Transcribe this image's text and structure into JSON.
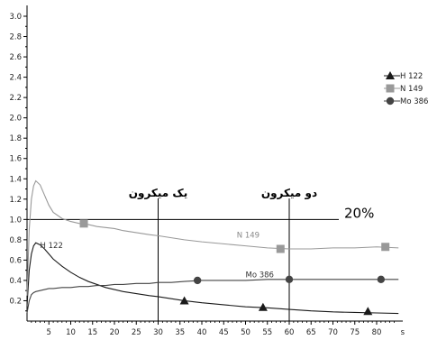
{
  "chart_data": {
    "type": "line",
    "xlim": [
      0,
      88
    ],
    "ylim": [
      0,
      3.2
    ],
    "x_ticks": [
      5,
      10,
      15,
      20,
      25,
      30,
      35,
      40,
      45,
      50,
      55,
      60,
      65,
      70,
      75,
      80
    ],
    "x_unit": "s",
    "y_ticks": [
      0.2,
      0.4,
      0.6,
      0.8,
      1.0,
      1.2,
      1.4,
      1.6,
      1.8,
      2.0,
      2.2,
      2.4,
      2.6,
      2.8,
      3.0
    ],
    "y_tick_labels": [
      "0.2",
      "0.4",
      "0.6",
      "0.8",
      "1.0",
      "1.2",
      "1.4",
      "1.6",
      "1.8",
      "2.0",
      "2.2",
      "2.4",
      "2.6",
      "2.8",
      "3.0"
    ],
    "grid": false,
    "legend_position": "right",
    "series": [
      {
        "name": "H 122",
        "color": "#1a1a1a",
        "marker": "triangle",
        "label": "H 122",
        "label_at": [
          3,
          0.72
        ],
        "x": [
          0,
          0.5,
          1,
          1.5,
          2,
          3,
          4,
          5,
          6,
          8,
          10,
          12,
          14,
          16,
          18,
          20,
          22,
          25,
          28,
          30,
          33,
          36,
          40,
          45,
          50,
          55,
          60,
          65,
          70,
          75,
          80,
          85
        ],
        "y": [
          0.15,
          0.5,
          0.66,
          0.74,
          0.77,
          0.75,
          0.71,
          0.66,
          0.61,
          0.54,
          0.48,
          0.43,
          0.39,
          0.36,
          0.33,
          0.31,
          0.29,
          0.27,
          0.25,
          0.24,
          0.22,
          0.2,
          0.18,
          0.16,
          0.14,
          0.13,
          0.115,
          0.1,
          0.09,
          0.085,
          0.08,
          0.075
        ],
        "markers_x": [
          36,
          54,
          78
        ],
        "markers_y": [
          0.2,
          0.135,
          0.095
        ]
      },
      {
        "name": "N 149",
        "color": "#999999",
        "marker": "square",
        "label": "N 149",
        "label_at": [
          48,
          0.82
        ],
        "x": [
          0,
          0.5,
          1,
          1.5,
          2,
          3,
          4,
          5,
          6,
          8,
          10,
          12,
          14,
          16,
          18,
          20,
          22,
          25,
          28,
          30,
          33,
          36,
          40,
          45,
          50,
          55,
          60,
          65,
          70,
          75,
          80,
          85
        ],
        "y": [
          0.25,
          0.9,
          1.2,
          1.33,
          1.38,
          1.34,
          1.24,
          1.14,
          1.07,
          1.01,
          0.98,
          0.96,
          0.95,
          0.93,
          0.92,
          0.91,
          0.89,
          0.87,
          0.85,
          0.84,
          0.82,
          0.8,
          0.78,
          0.76,
          0.74,
          0.72,
          0.71,
          0.71,
          0.72,
          0.72,
          0.73,
          0.72
        ],
        "markers_x": [
          13,
          58,
          82
        ],
        "markers_y": [
          0.96,
          0.71,
          0.73
        ]
      },
      {
        "name": "Mo 386",
        "color": "#444444",
        "marker": "circle",
        "label": "Mo 386",
        "label_at": [
          50,
          0.43
        ],
        "x": [
          0,
          0.5,
          1,
          1.5,
          2,
          3,
          4,
          5,
          6,
          8,
          10,
          12,
          14,
          16,
          18,
          20,
          22,
          25,
          28,
          30,
          33,
          36,
          40,
          45,
          50,
          55,
          60,
          65,
          70,
          75,
          80,
          85
        ],
        "y": [
          0.08,
          0.2,
          0.26,
          0.28,
          0.29,
          0.3,
          0.31,
          0.32,
          0.32,
          0.33,
          0.33,
          0.34,
          0.34,
          0.35,
          0.35,
          0.36,
          0.36,
          0.37,
          0.37,
          0.38,
          0.38,
          0.39,
          0.4,
          0.4,
          0.4,
          0.41,
          0.41,
          0.41,
          0.41,
          0.41,
          0.41,
          0.41
        ],
        "markers_x": [
          39,
          60,
          81
        ],
        "markers_y": [
          0.4,
          0.41,
          0.41
        ]
      }
    ],
    "reference_line": {
      "y": 1.0,
      "label": "20%"
    },
    "vertical_markers": [
      {
        "x": 30,
        "label": "یک میکرون"
      },
      {
        "x": 60,
        "label": "دو میکرون"
      }
    ]
  }
}
